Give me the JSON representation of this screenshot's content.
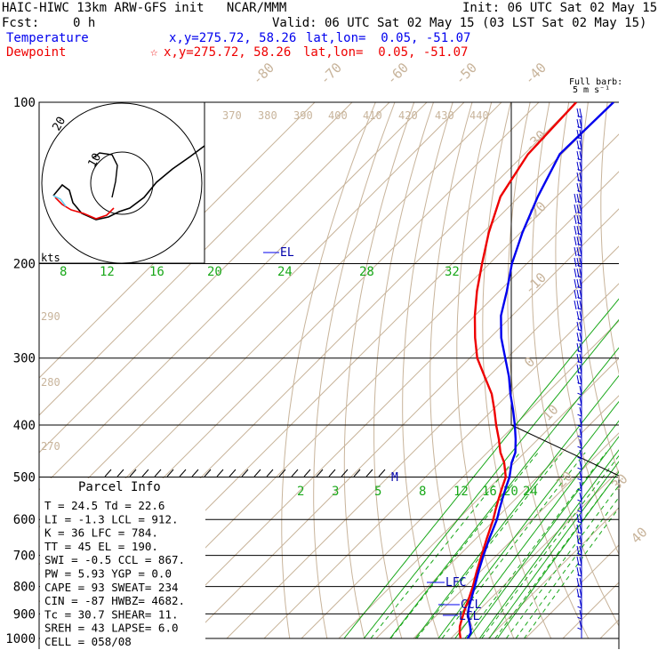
{
  "header": {
    "title": "HAIC-HIWC 13km ARW-GFS init   NCAR/MMM",
    "init": "Init: 06 UTC Sat 02 May 15",
    "fcst_label": "Fcst:",
    "fcst_value": "0 h",
    "valid": "Valid: 06 UTC Sat 02 May 15 (03 LST Sat 02 May 15)",
    "temp_label": "Temperature",
    "temp_xy": "x,y=275.72, 58.26",
    "temp_latlon": "lat,lon=  0.05, -51.07",
    "dew_label": "Dewpoint",
    "dew_star": "☆",
    "dew_xy": "x,y=275.72, 58.26",
    "dew_latlon": "lat,lon=  0.05, -51.07"
  },
  "barb_legend": {
    "line1": "Full barb:",
    "line2": "5 m s⁻¹"
  },
  "hodograph": {
    "ring_labels": [
      "20",
      "10"
    ],
    "units": "kts"
  },
  "parcel_info": {
    "title": "Parcel Info",
    "rows": [
      "T  =   24.5  Td =  22.6",
      "LI =   -1.3  LCL =  912.",
      "K  =     36  LFC =  784.",
      "TT =     45  EL  =  190.",
      "SWI =  -0.5  CCL =  867.",
      "PW =   5.93  YGP =   0.0",
      "CAPE =   93  SWEAT=  234",
      "CIN =   -87  HWBZ= 4682.",
      "Tc =   30.7  SHEAR=  11.",
      "SREH =   43  LAPSE=  6.0",
      "CELL = 058/08"
    ]
  },
  "level_labels": [
    "EL",
    "LFC",
    "CCL",
    "LCL",
    "M"
  ],
  "chart_data": {
    "type": "line",
    "subtype": "skew-T log-p sounding",
    "y_axis": {
      "label": "",
      "scale": "log",
      "ticks": [
        100,
        200,
        300,
        400,
        500,
        600,
        700,
        800,
        900,
        1000
      ]
    },
    "isotherm_labels": [
      "-80",
      "-70",
      "-60",
      "-50",
      "-40",
      "-30",
      "-20",
      "-10",
      "0",
      "10",
      "20",
      "30",
      "40"
    ],
    "isotherm_values": [
      -80,
      -70,
      -60,
      -50,
      -40,
      -30,
      -20,
      -10,
      0,
      10,
      20,
      30,
      40
    ],
    "theta_labels": [
      "370",
      "380",
      "390",
      "400",
      "410",
      "420",
      "430",
      "440",
      "290",
      "280",
      "270"
    ],
    "mixing_ratio_labels_upper": [
      "8",
      "12",
      "16",
      "20",
      "24",
      "28",
      "32"
    ],
    "mixing_ratio_labels_lower": [
      "2",
      "3",
      "5",
      "8",
      "12",
      "16",
      "20",
      "24"
    ],
    "series": [
      {
        "color": "#ee0000",
        "p": [
          1000,
          975,
          950,
          925,
          900,
          875,
          850,
          800,
          750,
          700,
          650,
          600,
          575,
          550,
          525,
          500,
          470,
          450,
          425,
          400,
          375,
          350,
          325,
          300,
          275,
          250,
          225,
          200,
          175,
          150,
          125,
          100
        ],
        "t": [
          22.6,
          20.8,
          19.2,
          18.0,
          16.8,
          15.6,
          14.5,
          12.0,
          9.0,
          6.0,
          2.8,
          -0.5,
          -2.5,
          -4.5,
          -6.5,
          -8.5,
          -12.8,
          -16.5,
          -20.5,
          -25.0,
          -29.5,
          -34.5,
          -41.0,
          -48.0,
          -54.0,
          -60.0,
          -66.0,
          -72.0,
          -78.5,
          -85.0,
          -89.0,
          -90.0
        ]
      },
      {
        "color": "#0000ee",
        "p": [
          1000,
          975,
          950,
          925,
          900,
          875,
          850,
          800,
          750,
          700,
          650,
          600,
          575,
          550,
          525,
          500,
          470,
          450,
          425,
          400,
          375,
          350,
          325,
          300,
          275,
          250,
          225,
          200,
          175,
          150,
          125,
          100
        ],
        "t": [
          24.5,
          23.8,
          22.0,
          20.0,
          18.0,
          16.5,
          15.2,
          12.5,
          9.5,
          6.5,
          3.5,
          0.5,
          -1.5,
          -3.5,
          -5.5,
          -7.5,
          -10.8,
          -12.5,
          -16.0,
          -20.0,
          -24.5,
          -29.5,
          -34.5,
          -40.5,
          -47.0,
          -53.0,
          -58.0,
          -64.0,
          -69.5,
          -75.0,
          -80.5,
          -80.0
        ]
      }
    ],
    "wind_barbs": {
      "p": [
        1000,
        950,
        900,
        850,
        800,
        750,
        700,
        650,
        600,
        550,
        500,
        450,
        400,
        350,
        300,
        250,
        200,
        150,
        100
      ],
      "speed_ms": [
        3,
        5,
        5,
        7,
        8,
        8,
        10,
        10,
        8,
        7,
        6,
        5,
        5,
        6,
        8,
        12,
        15,
        15,
        10
      ],
      "dir_deg": [
        80,
        90,
        100,
        110,
        100,
        90,
        90,
        100,
        110,
        110,
        120,
        100,
        90,
        80,
        100,
        110,
        120,
        110,
        100
      ]
    }
  },
  "colors": {
    "temperature": "#0000ee",
    "dewpoint": "#ee0000",
    "isotherm": "#c8b49b",
    "mixing_ratio": "#1aa81a",
    "isobar": "#000000"
  }
}
